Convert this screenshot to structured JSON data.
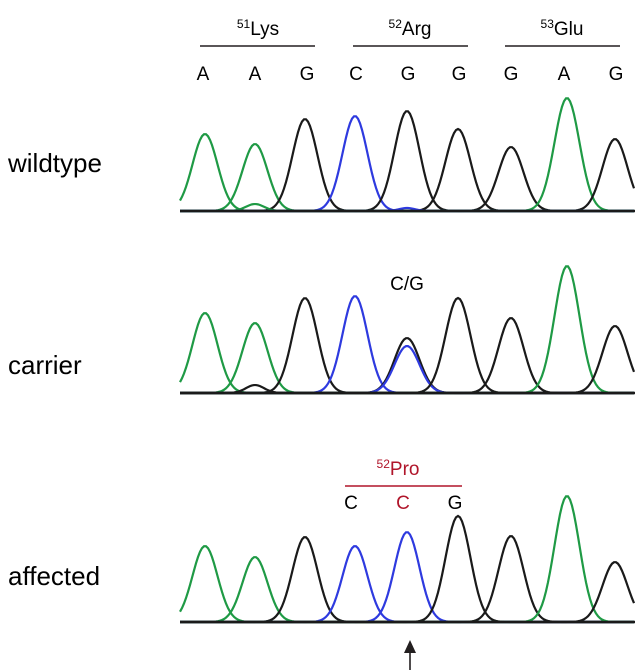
{
  "codons": [
    {
      "sup": "51",
      "name": "Lys"
    },
    {
      "sup": "52",
      "name": "Arg"
    },
    {
      "sup": "53",
      "name": "Glu"
    }
  ],
  "bases": [
    "A",
    "A",
    "G",
    "C",
    "G",
    "G",
    "G",
    "A",
    "G"
  ],
  "samples": [
    {
      "label": "wildtype"
    },
    {
      "label": "carrier",
      "annotation": "C/G"
    },
    {
      "label": "affected"
    }
  ],
  "mutant": {
    "sup": "52",
    "name": "Pro",
    "bases": [
      "C",
      "C",
      "G"
    ]
  },
  "colors": {
    "A": "#1f9a45",
    "C": "#2e3adf",
    "G": "#1a1a1a",
    "T": "#d42a2a",
    "mutation": "#b0152a",
    "text": "#231f20"
  },
  "icons": {
    "position_marker": "arrow-up-icon"
  }
}
